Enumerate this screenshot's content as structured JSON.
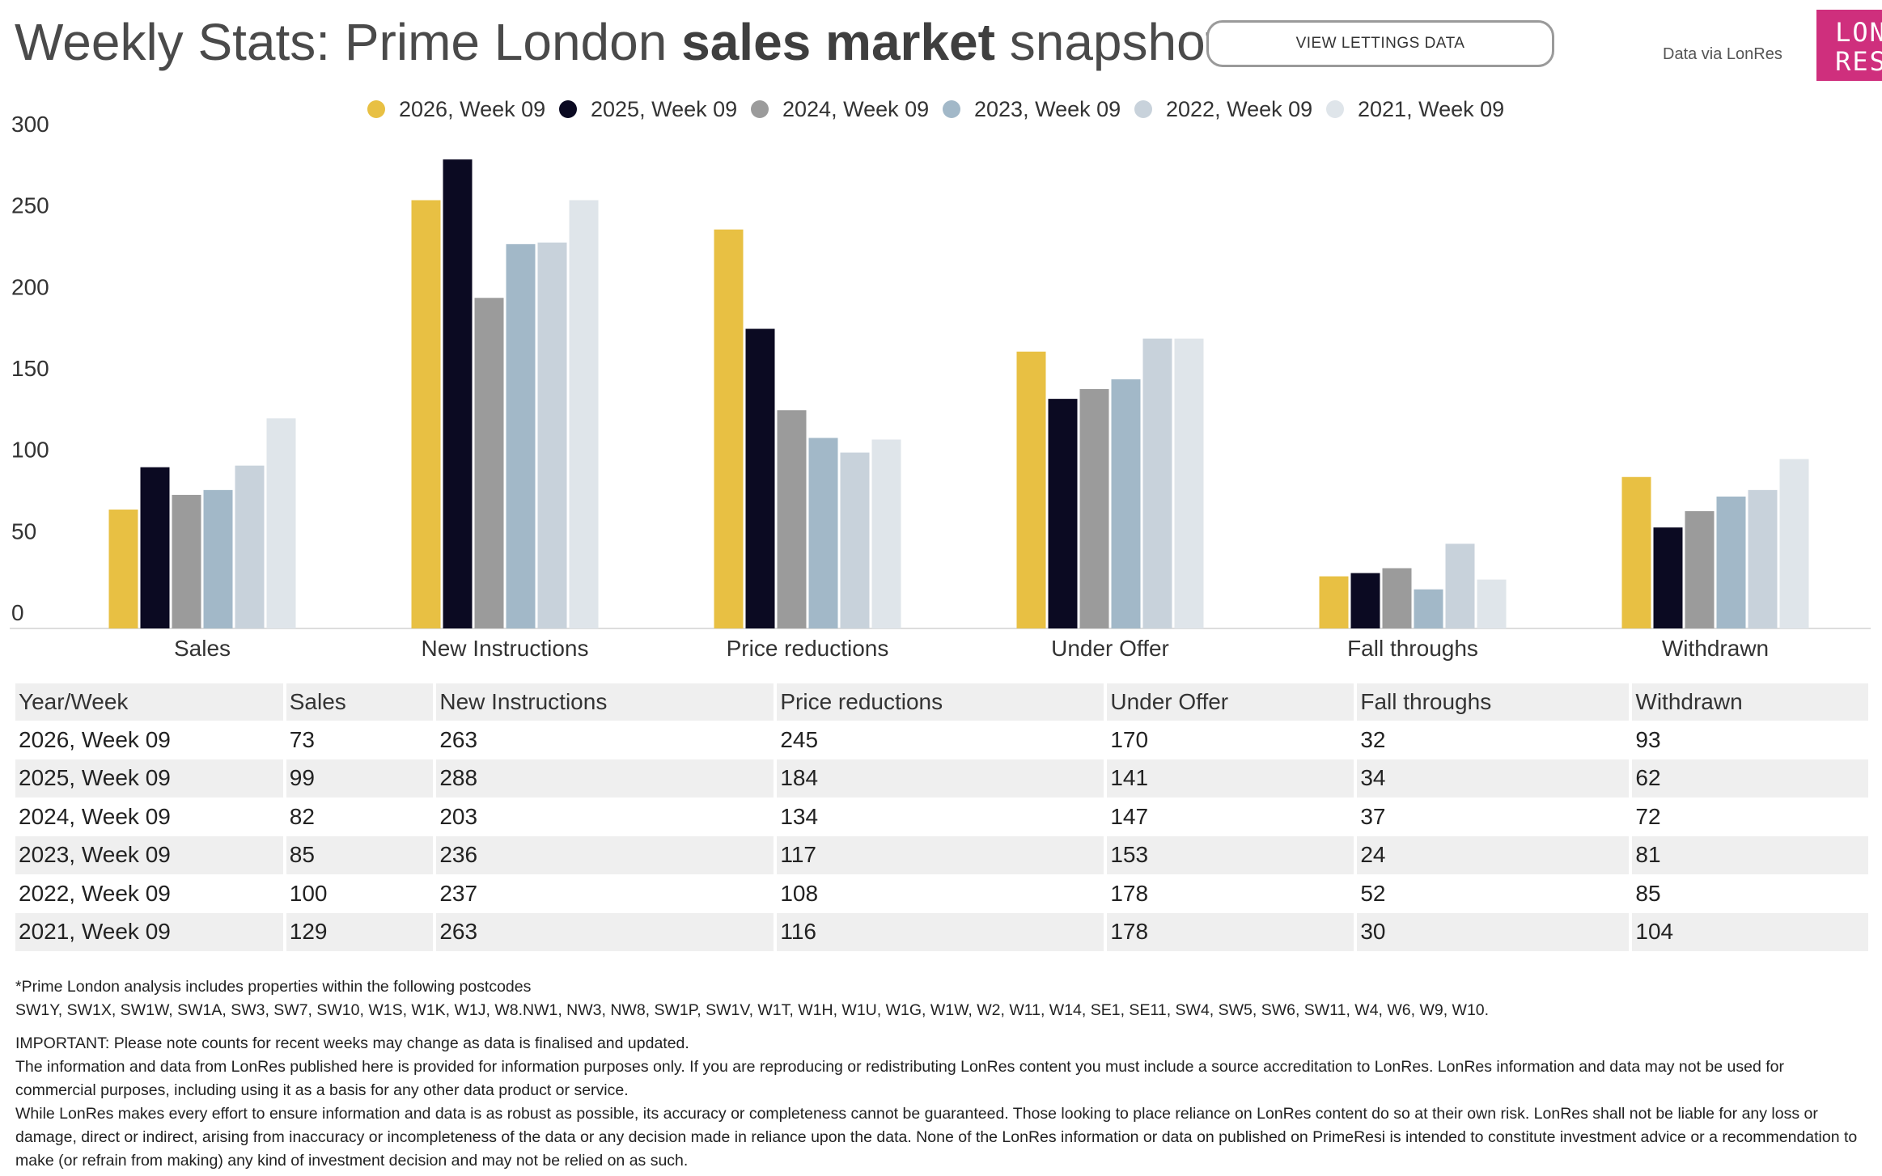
{
  "header": {
    "title_part1": "Weekly Stats: Prime London ",
    "title_bold": "sales market",
    "title_part2": " snapshot",
    "lettings_button": "VIEW LETTINGS DATA",
    "source_note": "Data via LonRes",
    "logo_line1": "LON",
    "logo_line2": "RES"
  },
  "colors": {
    "series": [
      "#e8c043",
      "#0b0a22",
      "#9b9b9b",
      "#a2b8c8",
      "#c8d2db",
      "#dfe5ea"
    ],
    "grid": "#dddddd"
  },
  "chart_data": {
    "type": "bar",
    "categories": [
      "Sales",
      "New Instructions",
      "Price reductions",
      "Under Offer",
      "Fall throughs",
      "Withdrawn"
    ],
    "series": [
      {
        "name": "2026, Week 09",
        "values": [
          73,
          263,
          245,
          170,
          32,
          93
        ]
      },
      {
        "name": "2025, Week 09",
        "values": [
          99,
          288,
          184,
          141,
          34,
          62
        ]
      },
      {
        "name": "2024, Week 09",
        "values": [
          82,
          203,
          134,
          147,
          37,
          72
        ]
      },
      {
        "name": "2023, Week 09",
        "values": [
          85,
          236,
          117,
          153,
          24,
          81
        ]
      },
      {
        "name": "2022, Week 09",
        "values": [
          100,
          237,
          108,
          178,
          52,
          85
        ]
      },
      {
        "name": "2021, Week 09",
        "values": [
          129,
          263,
          116,
          178,
          30,
          104
        ]
      }
    ],
    "yticks": [
      0,
      50,
      100,
      150,
      200,
      250,
      300
    ],
    "ylim": [
      0,
      300
    ],
    "legend": "top-center",
    "grid": false
  },
  "table": {
    "headers": [
      "Year/Week",
      "Sales",
      "New Instructions",
      "Price reductions",
      "Under Offer",
      "Fall throughs",
      "Withdrawn"
    ],
    "rows": [
      [
        "2026, Week 09",
        "73",
        "263",
        "245",
        "170",
        "32",
        "93"
      ],
      [
        "2025, Week 09",
        "99",
        "288",
        "184",
        "141",
        "34",
        "62"
      ],
      [
        "2024, Week 09",
        "82",
        "203",
        "134",
        "147",
        "37",
        "72"
      ],
      [
        "2023, Week 09",
        "85",
        "236",
        "117",
        "153",
        "24",
        "81"
      ],
      [
        "2022, Week 09",
        "100",
        "237",
        "108",
        "178",
        "52",
        "85"
      ],
      [
        "2021, Week 09",
        "129",
        "263",
        "116",
        "178",
        "30",
        "104"
      ]
    ]
  },
  "notes": {
    "postcode_intro": "*Prime London analysis includes properties within the following postcodes",
    "postcodes": "SW1Y, SW1X, SW1W, SW1A, SW3, SW7, SW10, W1S, W1K, W1J, W8.NW1, NW3, NW8, SW1P, SW1V, W1T, W1H, W1U, W1G, W1W, W2, W11, W14, SE1, SE11, SW4, SW5, SW6, SW11, W4, W6, W9, W10.",
    "important": "IMPORTANT: Please note counts for recent weeks may change as data is finalised and updated.",
    "info": "The information and data from LonRes published here is provided for information purposes only. If you are reproducing or redistributing LonRes content you must include a source accreditation to LonRes. LonRes information and data may not be used for commercial purposes, including using it as a basis for any other data product or service.",
    "disclaimer": "While LonRes makes every effort to ensure information and data is as robust as possible, its accuracy or completeness cannot be guaranteed. Those looking to place reliance on LonRes content do so at their own risk. LonRes shall not be liable for any loss or damage, direct or indirect, arising from inaccuracy or incompleteness of the data or any decision made in reliance upon the data. None of the LonRes information or data on published on PrimeResi is intended to constitute investment advice or a recommendation to make (or refrain from making) any kind of investment decision and may not be relied on as such."
  }
}
